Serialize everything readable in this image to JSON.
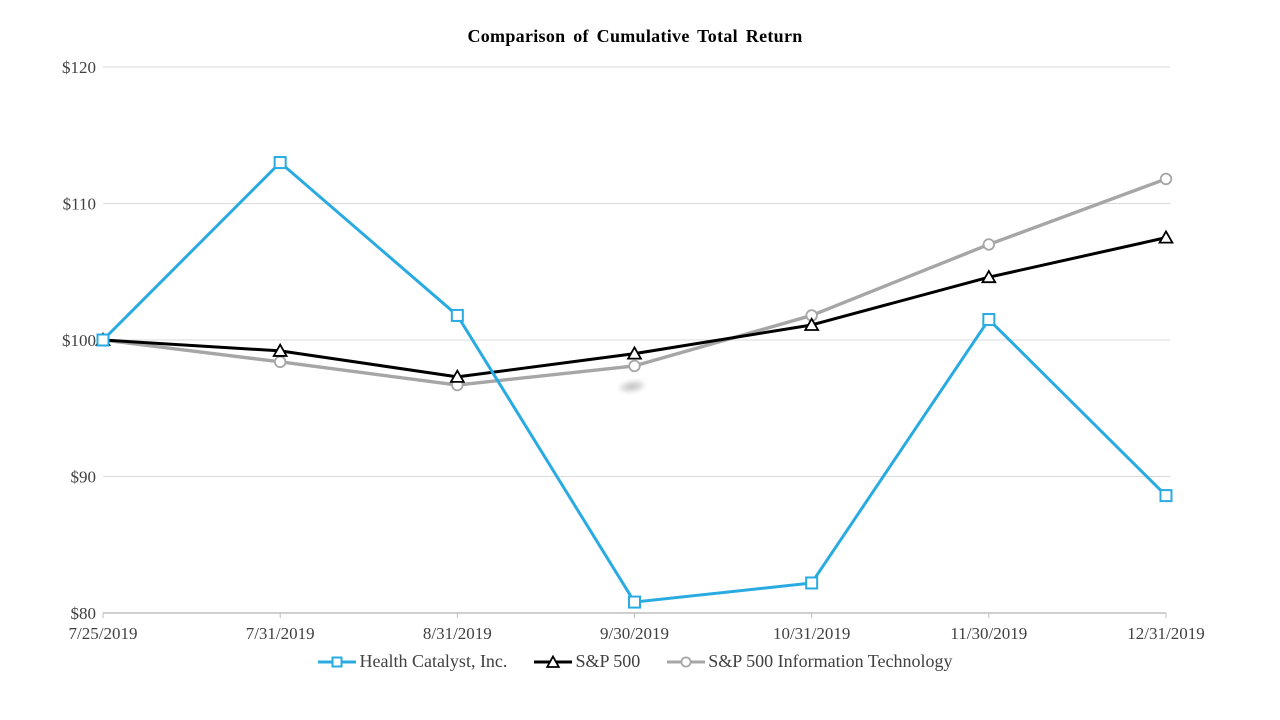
{
  "page": {
    "background": "#ffffff"
  },
  "colors": {
    "axis_line": "#bfbfbf",
    "gridline": "#d9d9d9",
    "label_text": "#404040",
    "title_text": "#000000",
    "marker_fill": "#ffffff"
  },
  "chart_data": {
    "type": "line",
    "title": "Comparison of Cumulative Total Return",
    "xlabel": "",
    "ylabel": "",
    "x": [
      "7/25/2019",
      "7/31/2019",
      "8/31/2019",
      "9/30/2019",
      "10/31/2019",
      "11/30/2019",
      "12/31/2019"
    ],
    "ylim": [
      80,
      120
    ],
    "y_ticks": [
      {
        "label": "$120",
        "value": 120
      },
      {
        "label": "$110",
        "value": 110
      },
      {
        "label": "$100",
        "value": 100
      },
      {
        "label": "$90",
        "value": 90
      },
      {
        "label": "$80",
        "value": 80
      }
    ],
    "grid": "horizontal-only",
    "legend_position": "bottom-center",
    "series": [
      {
        "id": "health-catalyst",
        "name": "Health Catalyst, Inc.",
        "color": "#29abe2",
        "marker": "square",
        "values": [
          100.0,
          113.0,
          101.8,
          80.8,
          82.2,
          101.5,
          88.6
        ]
      },
      {
        "id": "sp-500",
        "name": "S&P 500",
        "color": "#000000",
        "marker": "triangle",
        "values": [
          100.0,
          99.2,
          97.3,
          99.0,
          101.1,
          104.6,
          107.5
        ]
      },
      {
        "id": "sp-500-information-technology",
        "name": "S&P 500 Information Technology",
        "color": "#a6a6a6",
        "marker": "circle",
        "values": [
          100.0,
          98.4,
          96.7,
          98.1,
          101.8,
          107.0,
          111.8
        ]
      }
    ]
  }
}
